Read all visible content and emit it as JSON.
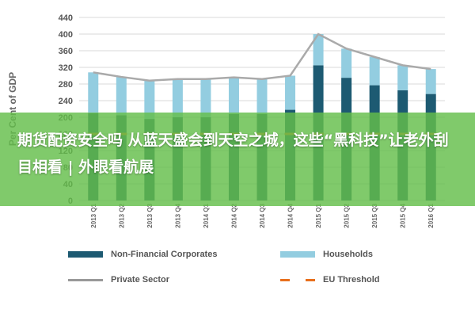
{
  "chart_data": {
    "type": "bar",
    "stacked": true,
    "ylabel": "Per Cent of GDP",
    "ylim": [
      0,
      440
    ],
    "yticks": [
      0,
      40,
      80,
      120,
      160,
      200,
      240,
      280,
      320,
      360,
      400,
      440
    ],
    "categories": [
      "2013 Q1",
      "2013 Q2",
      "2013 Q3",
      "2013 Q4",
      "2014 Q1",
      "2014 Q2",
      "2014 Q3",
      "2014 Q4",
      "2015 Q1",
      "2015 Q2",
      "2015 Q3",
      "2015 Q4",
      "2016 Q1"
    ],
    "series": [
      {
        "name": "Non-Financial Corporates",
        "type": "bar",
        "color": "#1d5a72",
        "values": [
          210,
          205,
          196,
          200,
          200,
          208,
          208,
          218,
          325,
          295,
          277,
          265,
          256
        ]
      },
      {
        "name": "Households",
        "type": "bar",
        "color": "#93cde0",
        "values": [
          98,
          92,
          92,
          92,
          92,
          88,
          84,
          82,
          75,
          70,
          68,
          60,
          60
        ]
      },
      {
        "name": "Private Sector",
        "type": "line",
        "color": "#aaaaaa",
        "values": [
          308,
          297,
          288,
          292,
          292,
          296,
          292,
          300,
          400,
          365,
          345,
          325,
          316
        ]
      },
      {
        "name": "EU Threshold",
        "type": "dashed-line",
        "color": "#e8701d",
        "values": [
          160,
          160,
          160,
          160,
          160,
          160,
          160,
          160,
          160,
          160,
          160,
          160,
          160
        ]
      }
    ],
    "grid": true,
    "legend_position": "bottom"
  },
  "legend": {
    "corporates": "Non-Financial Corporates",
    "households": "Households",
    "private": "Private Sector",
    "threshold": "EU Threshold"
  },
  "banner": {
    "text": "期货配资安全吗 从蓝天盛会到天空之城，这些“黑科技”让老外刮目相看 | 外眼看航展",
    "color": "#64be4b"
  }
}
